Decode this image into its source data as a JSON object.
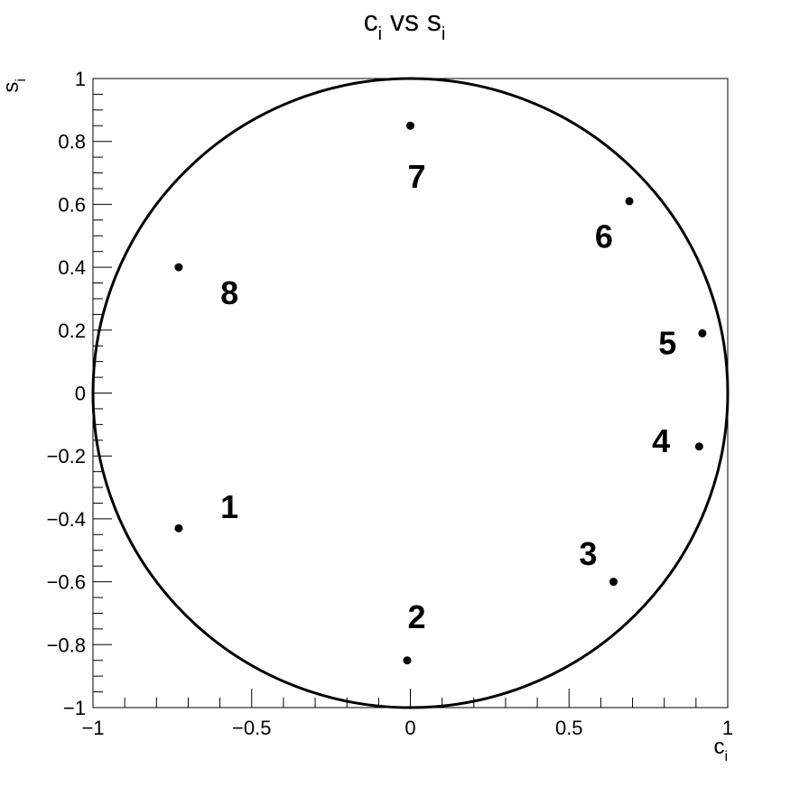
{
  "chart_data": {
    "type": "scatter",
    "title": {
      "main": "c",
      "sub1": "i",
      "mid": " vs s",
      "sub2": "i"
    },
    "xlabel": {
      "main": "c",
      "sub": "i"
    },
    "ylabel": {
      "main": "s",
      "sub": "i"
    },
    "xlim": [
      -1,
      1
    ],
    "ylim": [
      -1,
      1
    ],
    "x_ticks": [
      -1,
      -0.5,
      0,
      0.5,
      1
    ],
    "x_tick_labels": [
      "−1",
      "−0.5",
      "0",
      "0.5",
      "1"
    ],
    "y_ticks": [
      -1,
      -0.8,
      -0.6,
      -0.4,
      -0.2,
      0,
      0.2,
      0.4,
      0.6,
      0.8,
      1
    ],
    "y_tick_labels": [
      "−1",
      "−0.8",
      "−0.6",
      "−0.4",
      "−0.2",
      "0",
      "0.2",
      "0.4",
      "0.6",
      "0.8",
      "1"
    ],
    "grid": false,
    "unit_circle": true,
    "points": [
      {
        "label": "1",
        "x": -0.73,
        "y": -0.43,
        "label_x": -0.57,
        "label_y": -0.36
      },
      {
        "label": "2",
        "x": -0.01,
        "y": -0.85,
        "label_x": 0.02,
        "label_y": -0.71
      },
      {
        "label": "3",
        "x": 0.64,
        "y": -0.6,
        "label_x": 0.56,
        "label_y": -0.51
      },
      {
        "label": "4",
        "x": 0.91,
        "y": -0.17,
        "label_x": 0.79,
        "label_y": -0.15
      },
      {
        "label": "5",
        "x": 0.92,
        "y": 0.19,
        "label_x": 0.81,
        "label_y": 0.16
      },
      {
        "label": "6",
        "x": 0.69,
        "y": 0.61,
        "label_x": 0.61,
        "label_y": 0.5
      },
      {
        "label": "7",
        "x": 0.0,
        "y": 0.85,
        "label_x": 0.02,
        "label_y": 0.69
      },
      {
        "label": "8",
        "x": -0.73,
        "y": 0.4,
        "label_x": -0.57,
        "label_y": 0.32
      }
    ]
  }
}
